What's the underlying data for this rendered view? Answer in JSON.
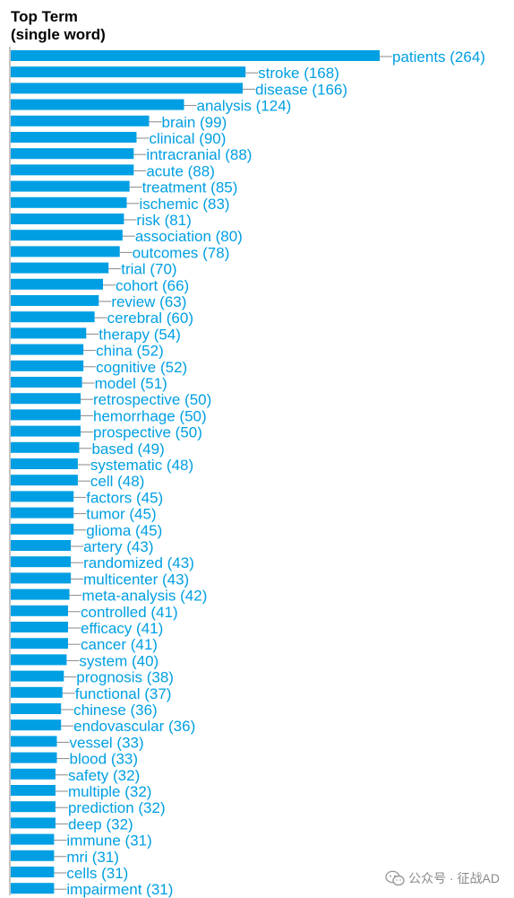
{
  "chart_title": {
    "line1": "Top Term",
    "line2": "(single word)"
  },
  "colors": {
    "bar": "#009fe3",
    "label": "#009fe3",
    "axis": "#888888"
  },
  "watermark": {
    "text": "公众号 · 征战AD",
    "icon": "wechat-icon"
  },
  "chart_data": {
    "type": "bar",
    "orientation": "horizontal",
    "xlim": [
      0,
      264
    ],
    "grid": false,
    "categories": [
      "patients",
      "stroke",
      "disease",
      "analysis",
      "brain",
      "clinical",
      "intracranial",
      "acute",
      "treatment",
      "ischemic",
      "risk",
      "association",
      "outcomes",
      "trial",
      "cohort",
      "review",
      "cerebral",
      "therapy",
      "china",
      "cognitive",
      "model",
      "retrospective",
      "hemorrhage",
      "prospective",
      "based",
      "systematic",
      "cell",
      "factors",
      "tumor",
      "glioma",
      "artery",
      "randomized",
      "multicenter",
      "meta-analysis",
      "controlled",
      "efficacy",
      "cancer",
      "system",
      "prognosis",
      "functional",
      "chinese",
      "endovascular",
      "vessel",
      "blood",
      "safety",
      "multiple",
      "prediction",
      "deep",
      "immune",
      "mri",
      "cells",
      "impairment"
    ],
    "values": [
      264,
      168,
      166,
      124,
      99,
      90,
      88,
      88,
      85,
      83,
      81,
      80,
      78,
      70,
      66,
      63,
      60,
      54,
      52,
      52,
      51,
      50,
      50,
      50,
      49,
      48,
      48,
      45,
      45,
      45,
      43,
      43,
      43,
      42,
      41,
      41,
      41,
      40,
      38,
      37,
      36,
      36,
      33,
      33,
      32,
      32,
      32,
      32,
      31,
      31,
      31,
      31
    ],
    "labels": [
      "patients (264)",
      "stroke (168)",
      "disease (166)",
      "analysis (124)",
      "brain (99)",
      "clinical (90)",
      "intracranial (88)",
      "acute (88)",
      "treatment (85)",
      "ischemic (83)",
      "risk (81)",
      "association (80)",
      "outcomes (78)",
      "trial (70)",
      "cohort (66)",
      "review (63)",
      "cerebral (60)",
      "therapy (54)",
      "china (52)",
      "cognitive (52)",
      "model (51)",
      "retrospective (50)",
      "hemorrhage (50)",
      "prospective (50)",
      "based (49)",
      "systematic (48)",
      "cell (48)",
      "factors (45)",
      "tumor (45)",
      "glioma (45)",
      "artery (43)",
      "randomized (43)",
      "multicenter (43)",
      "meta-analysis (42)",
      "controlled (41)",
      "efficacy (41)",
      "cancer (41)",
      "system (40)",
      "prognosis (38)",
      "functional (37)",
      "chinese (36)",
      "endovascular (36)",
      "vessel (33)",
      "blood (33)",
      "safety (32)",
      "multiple (32)",
      "prediction (32)",
      "deep (32)",
      "immune (31)",
      "mri (31)",
      "cells (31)",
      "impairment (31)"
    ]
  }
}
